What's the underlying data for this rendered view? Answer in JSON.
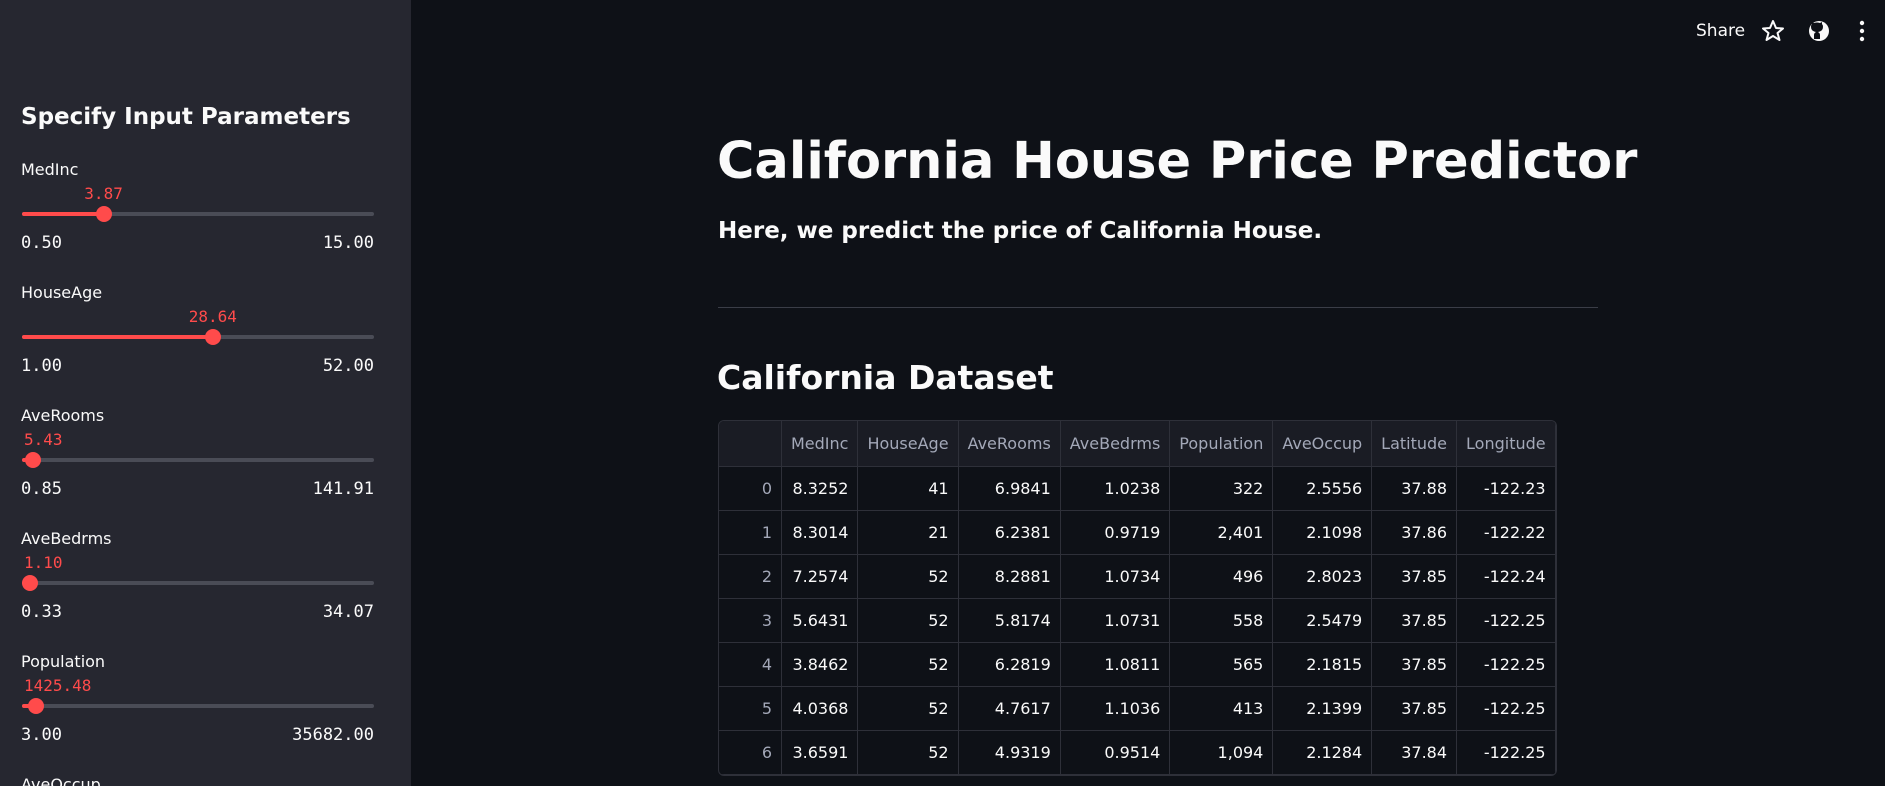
{
  "header": {
    "share": "Share"
  },
  "sidebar": {
    "title": "Specify Input Parameters",
    "sliders": [
      {
        "label": "MedInc",
        "value": "3.87",
        "min": "0.50",
        "max": "15.00"
      },
      {
        "label": "HouseAge",
        "value": "28.64",
        "min": "1.00",
        "max": "52.00"
      },
      {
        "label": "AveRooms",
        "value": "5.43",
        "min": "0.85",
        "max": "141.91"
      },
      {
        "label": "AveBedrms",
        "value": "1.10",
        "min": "0.33",
        "max": "34.07"
      },
      {
        "label": "Population",
        "value": "1425.48",
        "min": "3.00",
        "max": "35682.00"
      },
      {
        "label": "AveOccup"
      }
    ]
  },
  "main": {
    "title": "California House Price Predictor",
    "subtitle": "Here, we predict the price of California House.",
    "section": "California Dataset",
    "table": {
      "columns": [
        "MedInc",
        "HouseAge",
        "AveRooms",
        "AveBedrms",
        "Population",
        "AveOccup",
        "Latitude",
        "Longitude"
      ],
      "index": [
        "0",
        "1",
        "2",
        "3",
        "4",
        "5",
        "6"
      ],
      "rows": [
        [
          "8.3252",
          "41",
          "6.9841",
          "1.0238",
          "322",
          "2.5556",
          "37.88",
          "-122.23"
        ],
        [
          "8.3014",
          "21",
          "6.2381",
          "0.9719",
          "2,401",
          "2.1098",
          "37.86",
          "-122.22"
        ],
        [
          "7.2574",
          "52",
          "8.2881",
          "1.0734",
          "496",
          "2.8023",
          "37.85",
          "-122.24"
        ],
        [
          "5.6431",
          "52",
          "5.8174",
          "1.0731",
          "558",
          "2.5479",
          "37.85",
          "-122.25"
        ],
        [
          "3.8462",
          "52",
          "6.2819",
          "1.0811",
          "565",
          "2.1815",
          "37.85",
          "-122.25"
        ],
        [
          "4.0368",
          "52",
          "4.7617",
          "1.1036",
          "413",
          "2.1399",
          "37.85",
          "-122.25"
        ],
        [
          "3.6591",
          "52",
          "4.9319",
          "0.9514",
          "1,094",
          "2.1284",
          "37.84",
          "-122.25"
        ]
      ]
    }
  }
}
